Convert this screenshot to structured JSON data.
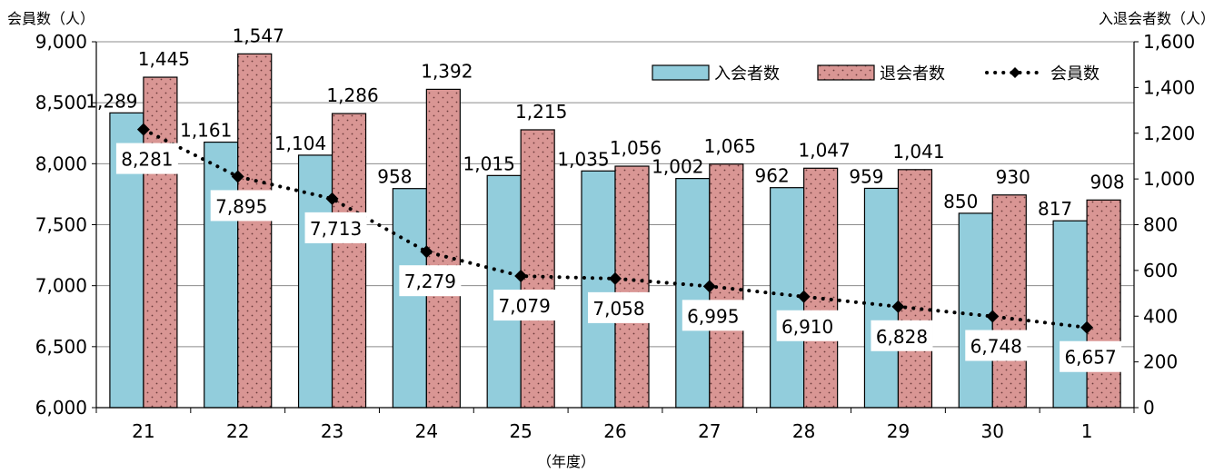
{
  "chart_data": {
    "type": "bar",
    "categories": [
      "21",
      "22",
      "23",
      "24",
      "25",
      "26",
      "27",
      "28",
      "29",
      "30",
      "1"
    ],
    "xlabel": "（年度）",
    "ylabel": "会員数（人）",
    "y2label": "入退会者数（人）",
    "ylim": [
      6000,
      9000
    ],
    "y2lim": [
      0,
      1600
    ],
    "yticks": [
      6000,
      6500,
      7000,
      7500,
      8000,
      8500,
      9000
    ],
    "y2ticks": [
      0,
      200,
      400,
      600,
      800,
      1000,
      1200,
      1400,
      1600
    ],
    "legend_position": "top-right",
    "series": [
      {
        "name": "入会者数",
        "kind": "bar",
        "axis": "right",
        "color": "#92CDDC",
        "values": [
          1289,
          1161,
          1104,
          958,
          1015,
          1035,
          1002,
          962,
          959,
          850,
          817
        ]
      },
      {
        "name": "退会者数",
        "kind": "bar",
        "axis": "right",
        "color": "#D99694",
        "pattern": "dots",
        "values": [
          1445,
          1547,
          1286,
          1392,
          1215,
          1056,
          1065,
          1047,
          1041,
          930,
          908
        ]
      },
      {
        "name": "会員数",
        "kind": "line",
        "axis": "left",
        "style": "dotted",
        "marker": "diamond",
        "color": "#000000",
        "values": [
          8281,
          7895,
          7713,
          7279,
          7079,
          7058,
          6995,
          6910,
          6828,
          6748,
          6657
        ]
      }
    ]
  }
}
